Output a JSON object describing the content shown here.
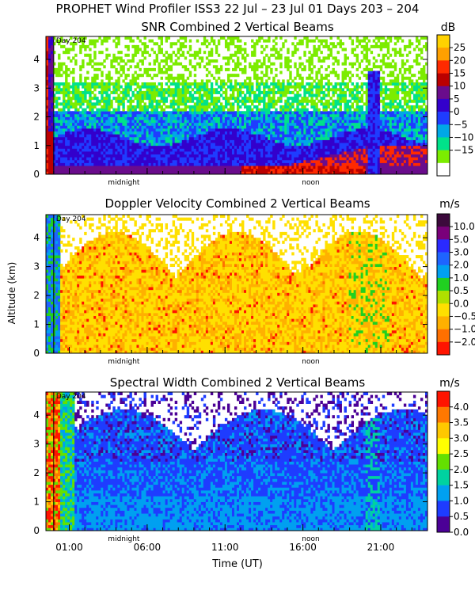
{
  "page_title": "PROPHET Wind Profiler ISS3  22 Jul – 23 Jul 01 Days 203 – 204",
  "shared": {
    "ylabel": "Altitude (km)",
    "xlabel": "Time (UT)",
    "x_ticks": [
      "01:00",
      "06:00",
      "11:00",
      "16:00",
      "21:00"
    ],
    "marker_day": "Day 204",
    "marker_midnight": "midnight",
    "marker_noon": "noon"
  },
  "chart_data": [
    {
      "type": "heatmap",
      "title": "SNR Combined 2 Vertical Beams",
      "unit": "dB",
      "xlabel": "Time (UT)",
      "ylabel": "Altitude (km)",
      "x_ticks": [
        "01:00",
        "06:00",
        "11:00",
        "16:00",
        "21:00"
      ],
      "x_tick_hours": [
        1,
        6,
        11,
        16,
        21
      ],
      "xlim_hours": [
        -0.5,
        24.0
      ],
      "y_ticks": [
        0,
        1,
        2,
        3,
        4
      ],
      "ylim": [
        0,
        4.8
      ],
      "markers": {
        "day_204_hour": 0.0,
        "midnight_hour": 4.5,
        "noon_hour": 16.5
      },
      "colorbar": {
        "labels": [
          "25",
          "20",
          "15",
          "10",
          "5",
          "0",
          "−5",
          "−10",
          "−15"
        ],
        "colors": [
          "#ffd200",
          "#ffa000",
          "#ff2a00",
          "#bb0000",
          "#6a0c8c",
          "#3300cc",
          "#1f3cff",
          "#00a8e6",
          "#00e28a",
          "#7cec00",
          "#ffffff"
        ]
      }
    },
    {
      "type": "heatmap",
      "title": "Doppler Velocity Combined 2 Vertical Beams",
      "unit": "m/s",
      "xlabel": "Time (UT)",
      "ylabel": "Altitude (km)",
      "x_ticks": [
        "01:00",
        "06:00",
        "11:00",
        "16:00",
        "21:00"
      ],
      "x_tick_hours": [
        1,
        6,
        11,
        16,
        21
      ],
      "xlim_hours": [
        -0.5,
        24.0
      ],
      "y_ticks": [
        0,
        1,
        2,
        3,
        4
      ],
      "ylim": [
        0,
        4.8
      ],
      "markers": {
        "day_204_hour": 0.0,
        "midnight_hour": 4.5,
        "noon_hour": 16.5
      },
      "colorbar": {
        "labels": [
          "10.0",
          "5.0",
          "3.0",
          "2.0",
          "1.0",
          "0.5",
          "0.0",
          "−0.5",
          "−1.0",
          "−2.0"
        ],
        "colors": [
          "#3c0a3c",
          "#7a007a",
          "#2a2aff",
          "#1e64ff",
          "#00a0f0",
          "#20d020",
          "#b0e000",
          "#ffe000",
          "#ffb000",
          "#ff7000",
          "#ff1400"
        ]
      }
    },
    {
      "type": "heatmap",
      "title": "Spectral Width Combined 2 Vertical Beams",
      "unit": "m/s",
      "xlabel": "Time (UT)",
      "ylabel": "Altitude (km)",
      "x_ticks": [
        "01:00",
        "06:00",
        "11:00",
        "16:00",
        "21:00"
      ],
      "x_tick_hours": [
        1,
        6,
        11,
        16,
        21
      ],
      "xlim_hours": [
        -0.5,
        24.0
      ],
      "y_ticks": [
        0,
        1,
        2,
        3,
        4
      ],
      "ylim": [
        0,
        4.8
      ],
      "markers": {
        "day_204_hour": 0.0,
        "midnight_hour": 4.5,
        "noon_hour": 16.5
      },
      "colorbar": {
        "labels": [
          "4.0",
          "3.5",
          "3.0",
          "2.5",
          "2.0",
          "1.5",
          "1.0",
          "0.5",
          "0.0"
        ],
        "colors": [
          "#ff1400",
          "#ff7800",
          "#ffc800",
          "#ffff00",
          "#64e000",
          "#00d2a0",
          "#00a0f0",
          "#1e3cff",
          "#4b0096"
        ]
      }
    }
  ]
}
